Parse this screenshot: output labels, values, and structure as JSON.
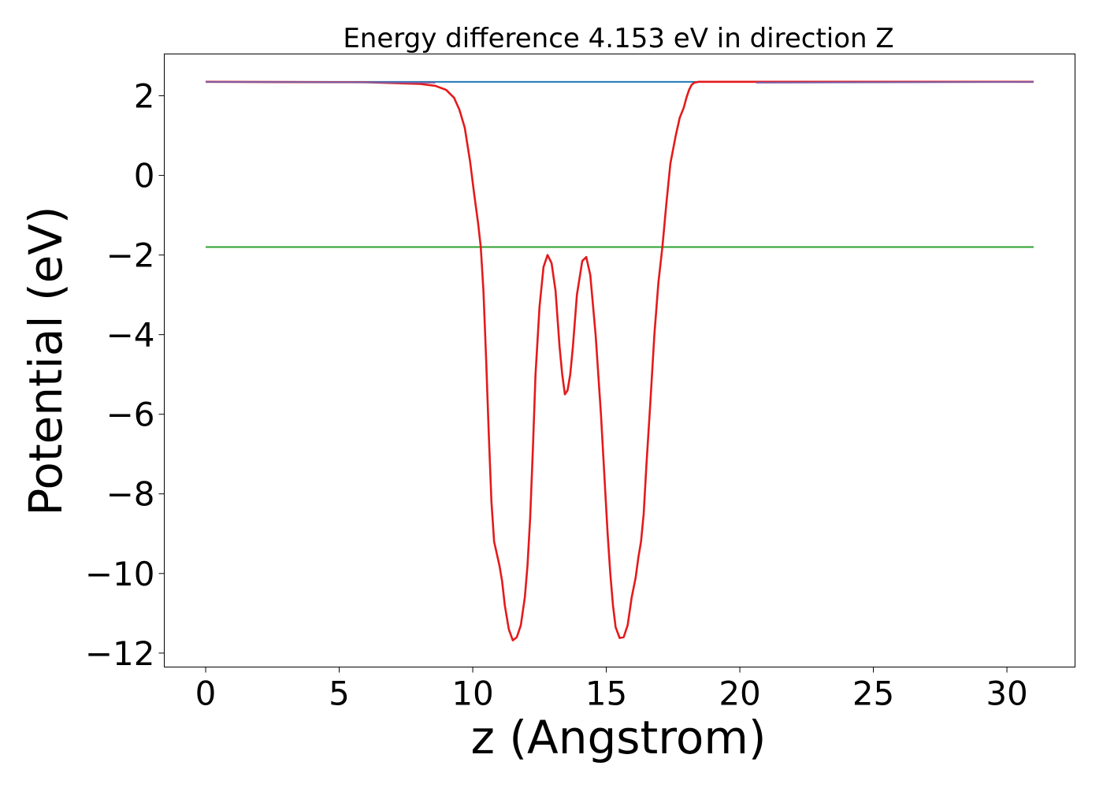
{
  "chart_data": {
    "type": "line",
    "title": "Energy difference 4.153 eV in direction Z",
    "xlabel": "z (Angstrom)",
    "ylabel": "Potential (eV)",
    "xlim": [
      -1.55,
      32.55
    ],
    "ylim": [
      -12.35,
      3.05
    ],
    "xticks": [
      0,
      5,
      10,
      15,
      20,
      25,
      30
    ],
    "yticks": [
      2,
      0,
      -2,
      -4,
      -6,
      -8,
      -10,
      -12
    ],
    "xtick_labels": [
      "0",
      "5",
      "10",
      "15",
      "20",
      "25",
      "30"
    ],
    "ytick_labels": [
      "2",
      "0",
      "−2",
      "−4",
      "−6",
      "−8",
      "−10",
      "−12"
    ],
    "grid": false,
    "legend": "none",
    "series": [
      {
        "color": "#1f77b4",
        "x": [
          0,
          31
        ],
        "y": [
          2.35,
          2.35
        ]
      },
      {
        "color": "#2ca02c",
        "x": [
          0,
          31
        ],
        "y": [
          -1.8,
          -1.8
        ]
      },
      {
        "color": "#e41a1c",
        "x": [
          0,
          6,
          8,
          8.6,
          9,
          9.3,
          9.5,
          9.7,
          9.9,
          10.05,
          10.2,
          10.3,
          10.4,
          10.5,
          10.6,
          10.7,
          10.8,
          11.0,
          11.1,
          11.2,
          11.35,
          11.5,
          11.65,
          11.8,
          11.95,
          12.05,
          12.15,
          12.25,
          12.35,
          12.5,
          12.65,
          12.8,
          12.95,
          13.1,
          13.25,
          13.35,
          13.45,
          13.55,
          13.65,
          13.75,
          13.9,
          14.1,
          14.25,
          14.4,
          14.6,
          14.8,
          14.95,
          15.05,
          15.15,
          15.25,
          15.35,
          15.5,
          15.65,
          15.8,
          15.95,
          16.1,
          16.2,
          16.3,
          16.4,
          16.5,
          16.65,
          16.8,
          16.95,
          17.1,
          17.25,
          17.4,
          17.6,
          17.75,
          17.9,
          18.0,
          18.1,
          18.2,
          18.3,
          18.45,
          18.6,
          18.8,
          19.0,
          19.3,
          19.7,
          20.2,
          21,
          23,
          31
        ],
        "y": [
          2.35,
          2.34,
          2.3,
          2.25,
          2.15,
          1.95,
          1.65,
          1.2,
          0.35,
          -0.45,
          -1.2,
          -1.8,
          -2.9,
          -4.6,
          -6.5,
          -8.2,
          -9.2,
          -9.8,
          -10.2,
          -10.8,
          -11.4,
          -11.68,
          -11.6,
          -11.3,
          -10.6,
          -9.8,
          -8.6,
          -6.9,
          -5.0,
          -3.3,
          -2.3,
          -2.0,
          -2.2,
          -2.9,
          -4.3,
          -5.0,
          -5.5,
          -5.4,
          -5.0,
          -4.3,
          -3.0,
          -2.15,
          -2.05,
          -2.5,
          -4.0,
          -6.0,
          -7.8,
          -9.0,
          -10.0,
          -10.8,
          -11.35,
          -11.62,
          -11.6,
          -11.3,
          -10.6,
          -10.1,
          -9.6,
          -9.2,
          -8.5,
          -7.3,
          -5.7,
          -4.0,
          -2.7,
          -1.8,
          -0.7,
          0.3,
          1.0,
          1.45,
          1.7,
          1.95,
          2.15,
          2.28,
          2.33,
          2.35,
          2.35,
          2.35,
          2.35,
          2.35,
          2.35,
          2.35,
          2.35,
          2.35,
          2.35
        ]
      },
      {
        "color": "#7b5fa8",
        "x": [
          0,
          8.6,
          8.61,
          20.6,
          20.61,
          31
        ],
        "y": [
          2.35,
          2.33,
          null,
          null,
          2.33,
          2.35
        ]
      }
    ]
  }
}
